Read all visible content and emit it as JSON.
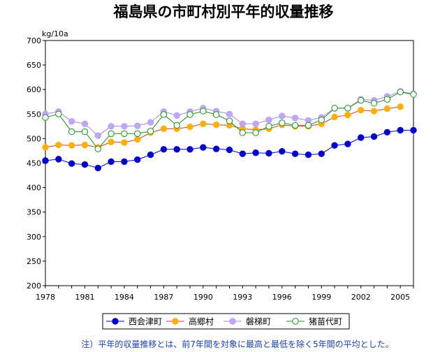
{
  "chart_data": {
    "type": "line",
    "title": "福島県の市町村別平年的収量推移",
    "ylabel": "kg/10a",
    "xlabel": "",
    "ylim": [
      200,
      700
    ],
    "yticks": [
      200,
      250,
      300,
      350,
      400,
      450,
      500,
      550,
      600,
      650,
      700
    ],
    "xlim": [
      1978,
      2006
    ],
    "xticks": [
      1978,
      1981,
      1984,
      1987,
      1990,
      1993,
      1996,
      1999,
      2002,
      2005
    ],
    "grid": false,
    "legend_position": "bottom",
    "series": [
      {
        "name": "西会津町",
        "color": "#0000cc",
        "marker_fill": "#0000cc",
        "line_color": "#0000cc",
        "x": [
          1978,
          1979,
          1980,
          1981,
          1982,
          1983,
          1984,
          1985,
          1986,
          1987,
          1988,
          1989,
          1990,
          1991,
          1992,
          1993,
          1994,
          1995,
          1996,
          1997,
          1998,
          1999,
          2000,
          2001,
          2002,
          2003,
          2004,
          2005,
          2006
        ],
        "values": [
          455,
          458,
          449,
          447,
          440,
          453,
          453,
          457,
          467,
          478,
          478,
          478,
          482,
          479,
          477,
          469,
          471,
          470,
          474,
          469,
          467,
          469,
          486,
          489,
          502,
          504,
          513,
          517,
          517
        ]
      },
      {
        "name": "高郷村",
        "color": "#ffb000",
        "marker_fill": "#ffb000",
        "line_color": "#c04040",
        "x": [
          1978,
          1979,
          1980,
          1981,
          1982,
          1983,
          1984,
          1985,
          1986,
          1987,
          1988,
          1989,
          1990,
          1991,
          1992,
          1993,
          1994,
          1995,
          1996,
          1997,
          1998,
          1999,
          2000,
          2001,
          2002,
          2003,
          2004,
          2005
        ],
        "values": [
          482,
          487,
          486,
          487,
          482,
          493,
          492,
          498,
          512,
          520,
          520,
          524,
          530,
          528,
          527,
          520,
          518,
          520,
          528,
          525,
          525,
          530,
          544,
          548,
          558,
          556,
          561,
          565
        ]
      },
      {
        "name": "磐梯町",
        "color": "#b8a0f0",
        "marker_fill": "#c0a8f8",
        "line_color": "#a088e0",
        "x": [
          1978,
          1979,
          1980,
          1981,
          1982,
          1983,
          1984,
          1985,
          1986,
          1987,
          1988,
          1989,
          1990,
          1991,
          1992,
          1993,
          1994,
          1995,
          1996,
          1997,
          1998,
          1999,
          2000,
          2001,
          2002,
          2003,
          2004,
          2005,
          2006
        ],
        "values": [
          550,
          555,
          535,
          530,
          506,
          525,
          525,
          526,
          533,
          555,
          547,
          555,
          562,
          556,
          550,
          530,
          530,
          538,
          546,
          542,
          537,
          543,
          562,
          562,
          580,
          578,
          586,
          596,
          591
        ]
      },
      {
        "name": "猪苗代町",
        "color": "#209020",
        "marker_fill": "#ffffff",
        "line_color": "#209020",
        "x": [
          1978,
          1979,
          1980,
          1981,
          1982,
          1983,
          1984,
          1985,
          1986,
          1987,
          1988,
          1989,
          1990,
          1991,
          1992,
          1993,
          1994,
          1995,
          1996,
          1997,
          1998,
          1999,
          2000,
          2001,
          2002,
          2003,
          2004,
          2005,
          2006
        ],
        "values": [
          543,
          550,
          514,
          514,
          479,
          510,
          510,
          510,
          515,
          549,
          527,
          549,
          556,
          549,
          536,
          512,
          512,
          525,
          532,
          527,
          527,
          538,
          562,
          562,
          578,
          572,
          580,
          595,
          590
        ]
      }
    ],
    "note": "注）平年的収量推移とは、前7年間を対象に最高と最低を除く5年間の平均とした。"
  }
}
